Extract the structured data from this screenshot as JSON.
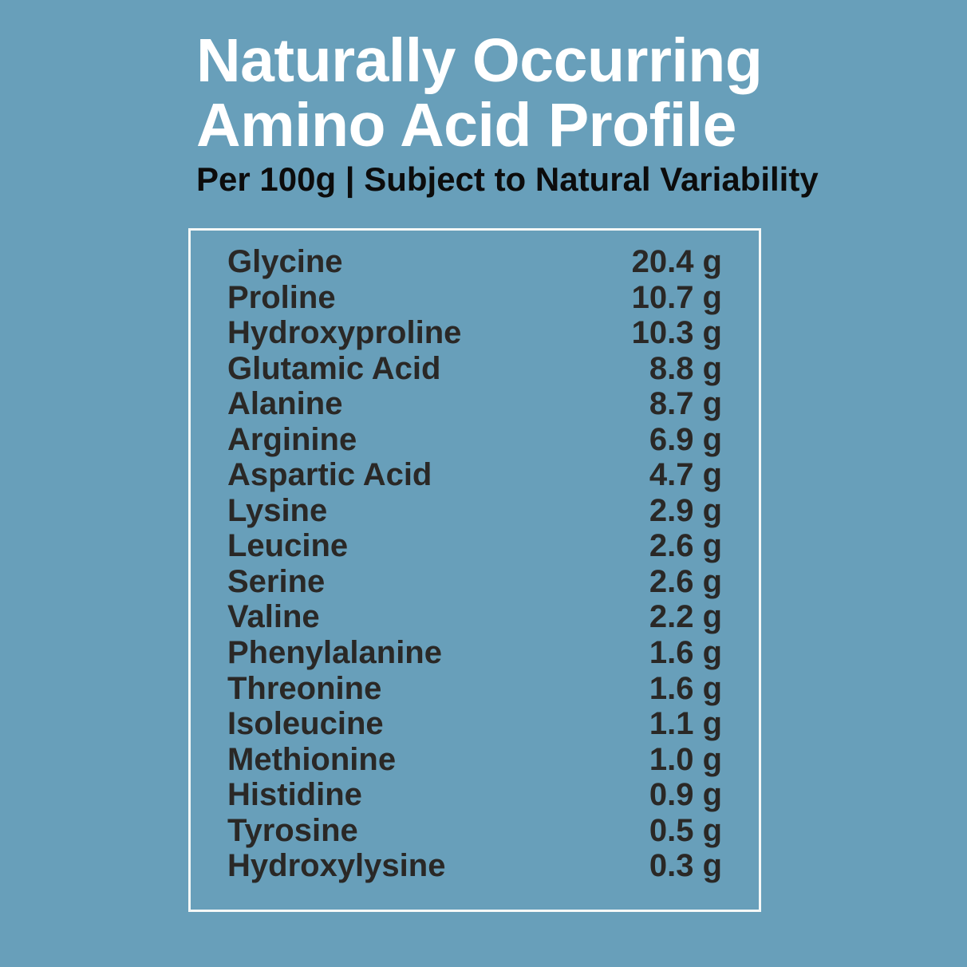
{
  "header": {
    "title_line1": "Naturally Occurring",
    "title_line2": "Amino Acid Profile",
    "subtitle": "Per 100g | Subject to Natural Variability"
  },
  "table": {
    "unit": "g",
    "rows": [
      {
        "name": "Glycine",
        "value": "20.4 g"
      },
      {
        "name": "Proline",
        "value": "10.7 g"
      },
      {
        "name": "Hydroxyproline",
        "value": "10.3 g"
      },
      {
        "name": "Glutamic Acid",
        "value": "8.8 g"
      },
      {
        "name": "Alanine",
        "value": "8.7 g"
      },
      {
        "name": "Arginine",
        "value": "6.9 g"
      },
      {
        "name": "Aspartic Acid",
        "value": "4.7 g"
      },
      {
        "name": "Lysine",
        "value": "2.9 g"
      },
      {
        "name": "Leucine",
        "value": "2.6 g"
      },
      {
        "name": "Serine",
        "value": "2.6 g"
      },
      {
        "name": "Valine",
        "value": "2.2 g"
      },
      {
        "name": "Phenylalanine",
        "value": "1.6 g"
      },
      {
        "name": "Threonine",
        "value": "1.6 g"
      },
      {
        "name": "Isoleucine",
        "value": "1.1 g"
      },
      {
        "name": "Methionine",
        "value": "1.0 g"
      },
      {
        "name": "Histidine",
        "value": "0.9 g"
      },
      {
        "name": "Tyrosine",
        "value": "0.5 g"
      },
      {
        "name": "Hydroxylysine",
        "value": "0.3 g"
      }
    ]
  },
  "colors": {
    "background": "#689FBA",
    "title_text": "#FFFFFF",
    "subtitle_text": "#0C0C0C",
    "row_text": "#2A2826",
    "panel_border": "#F5F8F7"
  }
}
